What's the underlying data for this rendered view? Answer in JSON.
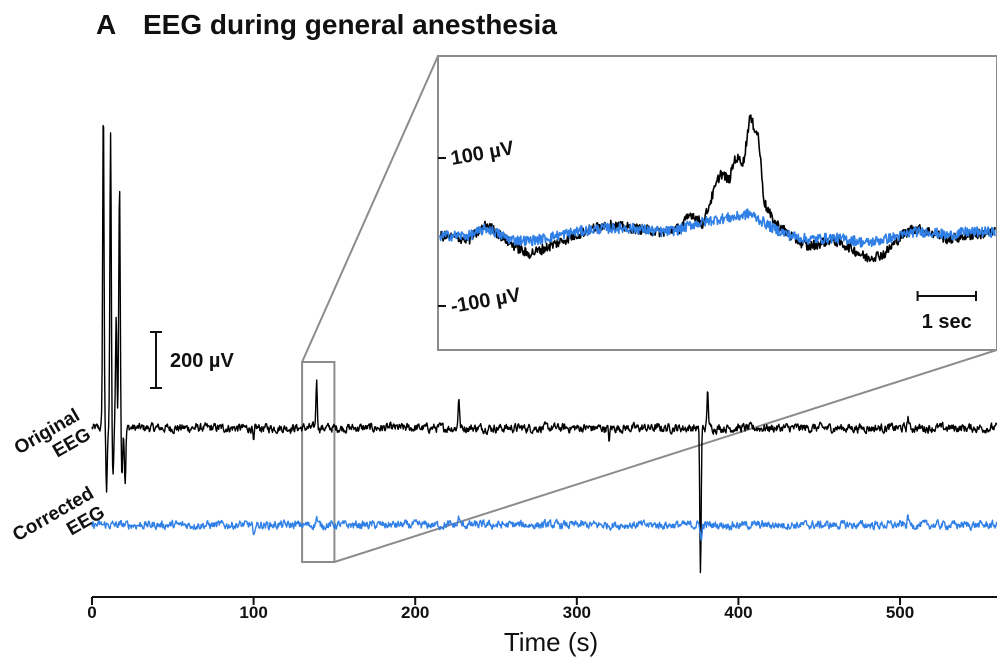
{
  "figure": {
    "panel_letter": "A",
    "title": "EEG during general anesthesia"
  },
  "colors": {
    "original": "#000000",
    "corrected": "#2f7fe6",
    "frame": "#8c8c8c",
    "axis": "#111111"
  },
  "chart_data": {
    "type": "line",
    "title": "EEG during general anesthesia",
    "xlabel": "Time (s)",
    "ylabel": "",
    "xlim": [
      0,
      560
    ],
    "xticks": [
      0,
      100,
      200,
      300,
      400,
      500
    ],
    "xtick_labels": [
      "0",
      "100",
      "200",
      "300",
      "400",
      "500"
    ],
    "grid": false,
    "series": [
      {
        "name": "Original EEG",
        "label_lines": [
          "Original",
          "EEG"
        ],
        "baseline_uV": 0,
        "noise_uV": 28,
        "events": [
          {
            "t": 7,
            "uV": 1150
          },
          {
            "t": 9,
            "uV": -230
          },
          {
            "t": 11.5,
            "uV": 1050
          },
          {
            "t": 13,
            "uV": -180
          },
          {
            "t": 15,
            "uV": 400
          },
          {
            "t": 17,
            "uV": 880
          },
          {
            "t": 18.5,
            "uV": -160
          },
          {
            "t": 20.5,
            "uV": -190
          },
          {
            "t": 100,
            "uV": -60
          },
          {
            "t": 139,
            "uV": 170
          },
          {
            "t": 227,
            "uV": 115
          },
          {
            "t": 320,
            "uV": -45
          },
          {
            "t": 376.5,
            "uV": -520
          },
          {
            "t": 381,
            "uV": 135
          },
          {
            "t": 505,
            "uV": 40
          }
        ]
      },
      {
        "name": "Corrected EEG",
        "label_lines": [
          "Corrected",
          "EEG"
        ],
        "baseline_uV": 0,
        "noise_uV": 26,
        "events": [
          {
            "t": 100,
            "uV": -55
          },
          {
            "t": 139,
            "uV": 30
          },
          {
            "t": 227,
            "uV": 30
          },
          {
            "t": 377,
            "uV": -60
          },
          {
            "t": 505,
            "uV": 35
          }
        ]
      }
    ],
    "scale_bar": {
      "value": 200,
      "label": "200 µV"
    },
    "highlight_window": {
      "t_start": 130,
      "t_end": 150
    },
    "inset": {
      "type": "line",
      "yticks": [
        100,
        -100
      ],
      "ytick_labels": [
        "100 µV",
        "-100 µV"
      ],
      "time_span_sec": 9.5,
      "time_bar_sec": 1,
      "time_bar_label": "1 sec",
      "original": {
        "name": "Original EEG",
        "knots": [
          [
            0,
            -5
          ],
          [
            0.5,
            -10
          ],
          [
            0.8,
            10
          ],
          [
            1.2,
            -15
          ],
          [
            1.5,
            -30
          ],
          [
            1.7,
            -25
          ],
          [
            2.0,
            -15
          ],
          [
            2.3,
            -5
          ],
          [
            2.8,
            10
          ],
          [
            3.3,
            5
          ],
          [
            3.8,
            0
          ],
          [
            4.1,
            5
          ],
          [
            4.3,
            25
          ],
          [
            4.5,
            10
          ],
          [
            4.6,
            35
          ],
          [
            4.8,
            80
          ],
          [
            4.95,
            70
          ],
          [
            5.05,
            100
          ],
          [
            5.2,
            95
          ],
          [
            5.3,
            155
          ],
          [
            5.45,
            130
          ],
          [
            5.55,
            40
          ],
          [
            5.7,
            15
          ],
          [
            6.0,
            -5
          ],
          [
            6.3,
            -20
          ],
          [
            6.7,
            -10
          ],
          [
            7.0,
            -20
          ],
          [
            7.3,
            -35
          ],
          [
            7.6,
            -30
          ],
          [
            7.9,
            -5
          ],
          [
            8.1,
            5
          ],
          [
            8.4,
            0
          ],
          [
            8.7,
            -10
          ],
          [
            9.0,
            -5
          ],
          [
            9.5,
            0
          ]
        ]
      },
      "corrected": {
        "name": "Corrected EEG",
        "knots": [
          [
            0,
            -5
          ],
          [
            0.5,
            -5
          ],
          [
            0.8,
            5
          ],
          [
            1.2,
            -10
          ],
          [
            1.5,
            -12
          ],
          [
            1.7,
            -10
          ],
          [
            2.0,
            -5
          ],
          [
            2.3,
            0
          ],
          [
            2.8,
            5
          ],
          [
            3.3,
            5
          ],
          [
            3.8,
            0
          ],
          [
            4.1,
            3
          ],
          [
            4.3,
            10
          ],
          [
            4.6,
            15
          ],
          [
            4.8,
            18
          ],
          [
            5.05,
            20
          ],
          [
            5.3,
            25
          ],
          [
            5.5,
            15
          ],
          [
            5.7,
            5
          ],
          [
            6.0,
            -5
          ],
          [
            6.3,
            -10
          ],
          [
            6.7,
            -8
          ],
          [
            7.0,
            -10
          ],
          [
            7.3,
            -15
          ],
          [
            7.6,
            -10
          ],
          [
            7.9,
            -5
          ],
          [
            8.1,
            0
          ],
          [
            8.4,
            0
          ],
          [
            8.7,
            -5
          ],
          [
            9.0,
            0
          ],
          [
            9.5,
            0
          ]
        ]
      }
    }
  }
}
